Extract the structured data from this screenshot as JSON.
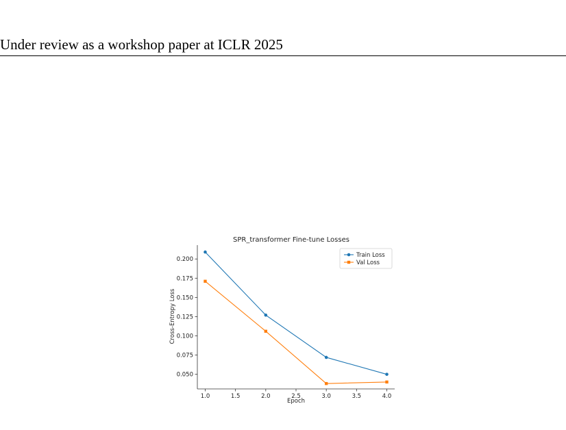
{
  "header": {
    "text": "Under review as a workshop paper at ICLR 2025"
  },
  "chart_data": {
    "type": "line",
    "title": "SPR_transformer Fine-tune Losses",
    "xlabel": "Epoch",
    "ylabel": "Cross-Entropy Loss",
    "xlim": [
      0.87,
      4.13
    ],
    "ylim": [
      0.031,
      0.218
    ],
    "xticks": [
      "1.0",
      "1.5",
      "2.0",
      "2.5",
      "3.0",
      "3.5",
      "4.0"
    ],
    "yticks": [
      "0.050",
      "0.075",
      "0.100",
      "0.125",
      "0.150",
      "0.175",
      "0.200"
    ],
    "grid": false,
    "legend_position": "top-right",
    "series": [
      {
        "name": "Train Loss",
        "color": "#1f77b4",
        "marker": "circle",
        "x": [
          1.0,
          2.0,
          3.0,
          4.0
        ],
        "y": [
          0.209,
          0.127,
          0.072,
          0.05
        ]
      },
      {
        "name": "Val Loss",
        "color": "#ff7f0e",
        "marker": "square",
        "x": [
          1.0,
          2.0,
          3.0,
          4.0
        ],
        "y": [
          0.171,
          0.106,
          0.038,
          0.04
        ]
      }
    ]
  }
}
